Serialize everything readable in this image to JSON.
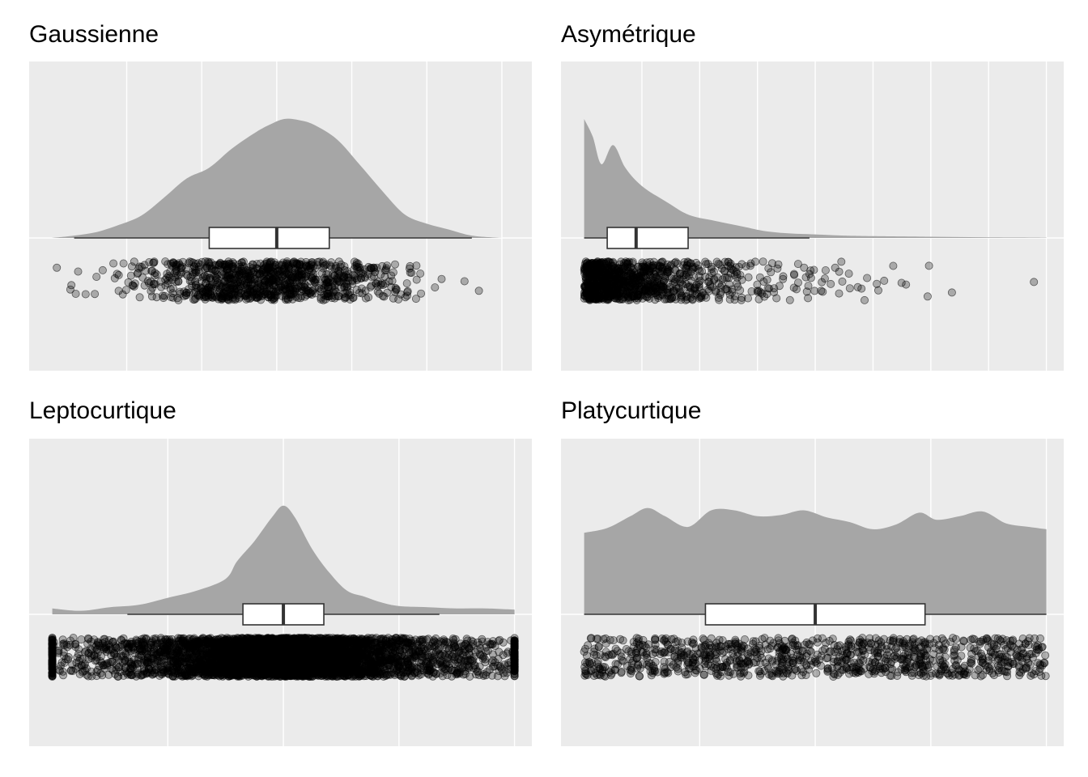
{
  "figure": {
    "colors": {
      "panel_background": "#ebebeb",
      "grid": "#ffffff",
      "density_fill": "#a6a6a6",
      "box_fill": "#ffffff",
      "box_line": "#333333",
      "point_fill": "#000000"
    }
  },
  "chart_data": [
    {
      "type": "raincloud",
      "title": "Gaussienne",
      "grid": true,
      "axis_labels_shown": false,
      "xlim": [
        -0.3,
        6.4
      ],
      "x_grid": [
        1,
        2,
        3,
        4,
        5,
        6
      ],
      "density": {
        "x": [
          0,
          0.3,
          0.6,
          0.9,
          1.2,
          1.5,
          1.8,
          2.1,
          2.4,
          2.7,
          2.9,
          3.1,
          3.3,
          3.5,
          3.8,
          4.1,
          4.4,
          4.7,
          5.0,
          5.3,
          5.6,
          6.0
        ],
        "y": [
          0,
          0.02,
          0.05,
          0.11,
          0.19,
          0.34,
          0.5,
          0.59,
          0.75,
          0.88,
          0.95,
          1.0,
          0.99,
          0.95,
          0.83,
          0.62,
          0.4,
          0.2,
          0.12,
          0.07,
          0.02,
          0
        ]
      },
      "box": {
        "whisker_low": 0.3,
        "q1": 2.1,
        "median": 3.0,
        "q3": 3.7,
        "whisker_high": 5.6
      },
      "points": {
        "n": 1000,
        "center": 2.9,
        "spread": 0.9,
        "min": 0.0,
        "max": 6.2,
        "distribution": "normal"
      }
    },
    {
      "type": "raincloud",
      "title": "Asymétrique",
      "grid": true,
      "axis_labels_shown": false,
      "xlim": [
        -0.4,
        8.3
      ],
      "x_grid": [
        1,
        2,
        3,
        4,
        5,
        6,
        7,
        8
      ],
      "density": {
        "x": [
          0,
          0.15,
          0.3,
          0.5,
          0.7,
          0.9,
          1.1,
          1.3,
          1.5,
          1.7,
          1.9,
          2.2,
          2.5,
          2.8,
          3.1,
          3.5,
          4.0,
          4.5,
          5.0,
          6.0,
          7.0,
          8.0
        ],
        "y": [
          1.0,
          0.85,
          0.62,
          0.78,
          0.6,
          0.48,
          0.4,
          0.34,
          0.28,
          0.22,
          0.18,
          0.15,
          0.12,
          0.09,
          0.06,
          0.04,
          0.03,
          0.02,
          0.015,
          0.01,
          0.005,
          0.003
        ]
      },
      "box": {
        "whisker_low": 0.0,
        "q1": 0.4,
        "median": 0.9,
        "q3": 1.8,
        "whisker_high": 3.9
      },
      "points": {
        "n": 1000,
        "center": 0,
        "spread": 1.1,
        "min": 0.0,
        "max": 8.0,
        "distribution": "exponential"
      }
    },
    {
      "type": "raincloud",
      "title": "Leptocurtique",
      "grid": true,
      "axis_labels_shown": false,
      "xlim": [
        -0.4,
        8.3
      ],
      "x_grid": [
        2,
        4,
        6,
        8
      ],
      "density": {
        "x": [
          0,
          0.5,
          1.0,
          1.5,
          2.0,
          2.5,
          3.0,
          3.2,
          3.5,
          3.8,
          4.0,
          4.2,
          4.5,
          4.8,
          5.1,
          5.4,
          5.7,
          6.0,
          6.5,
          7.0,
          7.5,
          8.0
        ],
        "y": [
          0.05,
          0.03,
          0.06,
          0.08,
          0.14,
          0.2,
          0.3,
          0.45,
          0.62,
          0.82,
          0.92,
          0.82,
          0.55,
          0.35,
          0.2,
          0.15,
          0.1,
          0.07,
          0.06,
          0.05,
          0.05,
          0.04
        ]
      },
      "box": {
        "whisker_low": 1.3,
        "q1": 3.3,
        "median": 4.0,
        "q3": 4.7,
        "whisker_high": 6.7
      },
      "points": {
        "n": 5000,
        "center": 4.0,
        "spread": 1.2,
        "min": 0.0,
        "max": 8.0,
        "distribution": "laplace"
      }
    },
    {
      "type": "raincloud",
      "title": "Platycurtique",
      "grid": true,
      "axis_labels_shown": false,
      "xlim": [
        -0.4,
        8.3
      ],
      "x_grid": [
        2,
        4,
        6,
        8
      ],
      "density": {
        "x": [
          0,
          0.4,
          0.8,
          1.1,
          1.4,
          1.8,
          2.2,
          2.6,
          3.0,
          3.4,
          3.8,
          4.2,
          4.6,
          5.0,
          5.4,
          5.8,
          6.1,
          6.5,
          6.9,
          7.3,
          7.7,
          8.0
        ],
        "y": [
          0.69,
          0.73,
          0.83,
          0.9,
          0.83,
          0.74,
          0.88,
          0.88,
          0.83,
          0.84,
          0.88,
          0.82,
          0.78,
          0.72,
          0.76,
          0.86,
          0.8,
          0.83,
          0.87,
          0.77,
          0.74,
          0.72
        ]
      },
      "box": {
        "whisker_low": 0.0,
        "q1": 2.1,
        "median": 4.0,
        "q3": 5.9,
        "whisker_high": 8.0
      },
      "points": {
        "n": 1000,
        "center": 4.0,
        "spread": 4.0,
        "min": 0.0,
        "max": 8.0,
        "distribution": "uniform"
      }
    }
  ]
}
